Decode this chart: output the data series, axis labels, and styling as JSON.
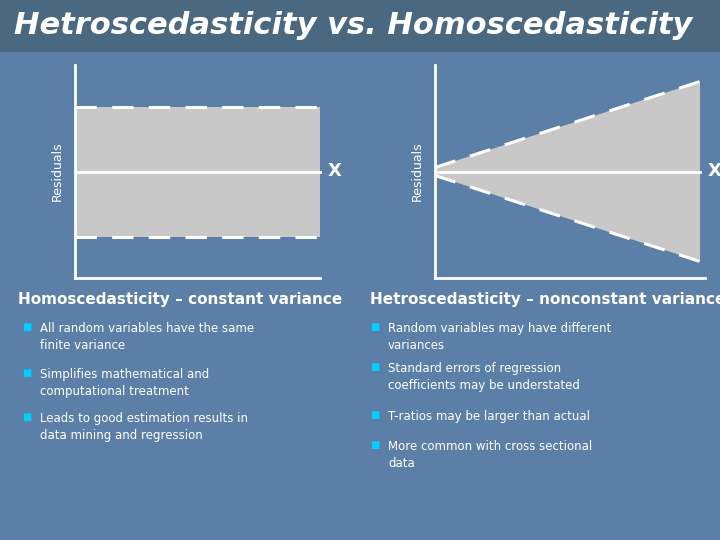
{
  "title": "Hetroscedasticity vs. Homoscedasticity",
  "title_color": "#FFFFFF",
  "title_fontsize": 22,
  "title_style": "italic",
  "title_weight": "bold",
  "bg_color": "#5b7fa6",
  "header_bg": "#4a6880",
  "diagram_bg": "#c8c8c8",
  "left_subtitle": "Homoscedasticity – constant variance",
  "right_subtitle": "Hetroscedasticity – nonconstant variance",
  "left_bullets": [
    "All random variables have the same\nfinite variance",
    "Simplifies mathematical and\ncomputational treatment",
    "Leads to good estimation results in\ndata mining and regression"
  ],
  "right_bullets": [
    "Random variables may have different\nvariances",
    "Standard errors of regression\ncoefficients may be understated",
    "T-ratios may be larger than actual",
    "More common with cross sectional\ndata"
  ],
  "bullet_color": "#00cfff",
  "text_color": "#FFFFFF",
  "subtitle_fontsize": 11,
  "bullet_fontsize": 8.5
}
